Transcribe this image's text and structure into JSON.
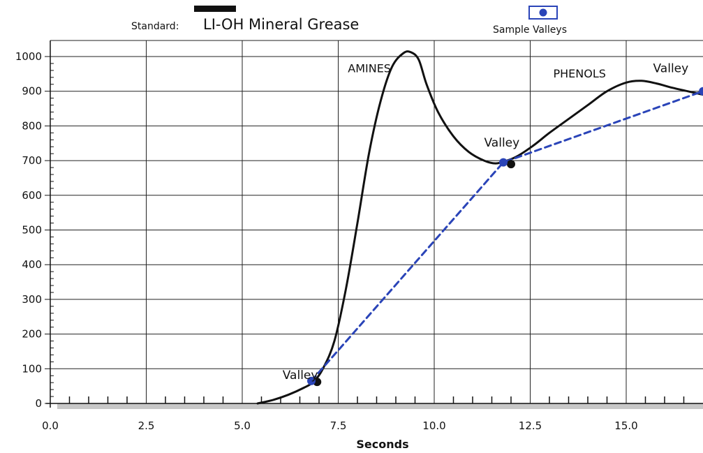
{
  "legend": {
    "standard_prefix": "Standard:",
    "standard_name": "LI-OH Mineral Grease",
    "sample_label": "Sample Valleys",
    "standard_color": "#111111",
    "sample_color": "#2a44b8"
  },
  "chart_data": {
    "type": "line",
    "xlabel": "Seconds",
    "ylabel": "",
    "xlim": [
      0,
      17
    ],
    "ylim": [
      0,
      1000
    ],
    "x_ticks": [
      0.0,
      2.5,
      5.0,
      7.5,
      10.0,
      12.5,
      15.0
    ],
    "x_tick_labels": [
      "0.0",
      "2.5",
      "5.0",
      "7.5",
      "10.0",
      "12.5",
      "15.0"
    ],
    "y_ticks": [
      0,
      100,
      200,
      300,
      400,
      500,
      600,
      700,
      800,
      900,
      1000
    ],
    "y_tick_labels": [
      "0",
      "100",
      "200",
      "300",
      "400",
      "500",
      "600",
      "700",
      "800",
      "900",
      "1000"
    ],
    "grid": true,
    "series": [
      {
        "name": "LI-OH Mineral Grease",
        "style": "solid",
        "color": "#111111",
        "x": [
          5.4,
          5.8,
          6.2,
          6.6,
          6.85,
          7.1,
          7.4,
          7.7,
          8.0,
          8.3,
          8.6,
          8.9,
          9.2,
          9.4,
          9.6,
          9.8,
          10.1,
          10.5,
          10.9,
          11.3,
          11.6,
          11.9,
          12.2,
          12.6,
          13.0,
          13.5,
          14.0,
          14.5,
          15.0,
          15.4,
          15.8,
          16.2,
          16.6,
          17.0
        ],
        "y": [
          0,
          10,
          25,
          45,
          62,
          100,
          180,
          330,
          520,
          720,
          870,
          970,
          1010,
          1012,
          990,
          920,
          840,
          770,
          725,
          700,
          692,
          700,
          715,
          745,
          780,
          820,
          860,
          900,
          925,
          930,
          922,
          910,
          900,
          890
        ]
      },
      {
        "name": "Sample Valleys",
        "style": "dashed",
        "color": "#2a44b8",
        "x": [
          6.8,
          11.8,
          17.0
        ],
        "y": [
          65,
          695,
          900
        ]
      }
    ],
    "valley_markers": {
      "standard": [
        {
          "x": 6.95,
          "y": 62
        },
        {
          "x": 12.0,
          "y": 690
        }
      ],
      "sample": [
        {
          "x": 6.8,
          "y": 65
        },
        {
          "x": 11.8,
          "y": 695
        },
        {
          "x": 17.0,
          "y": 900
        }
      ]
    },
    "annotations": [
      {
        "text": "AMINES",
        "x": 7.75,
        "y": 955
      },
      {
        "text": "PHENOLS",
        "x": 13.1,
        "y": 940
      },
      {
        "text": "Valley",
        "x": 6.05,
        "y": 70
      },
      {
        "text": "Valley",
        "x": 11.3,
        "y": 740
      },
      {
        "text": "Valley",
        "x": 15.7,
        "y": 955
      }
    ]
  }
}
